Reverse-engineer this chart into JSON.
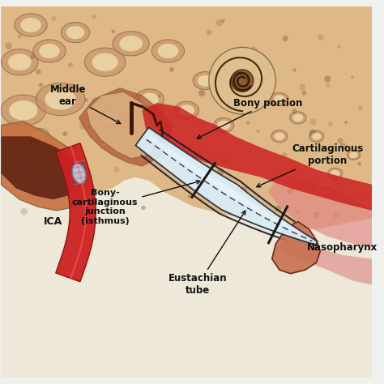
{
  "labels": {
    "middle_ear": "Middle\near",
    "ICA": "ICA",
    "bony_portion": "Bony portion",
    "cartilaginous_portion": "Cartilaginous\nportion",
    "bony_cartilaginous": "Bony-\ncartilaginous\njunction\n(isthmus)",
    "eustachian_tube": "Eustachian\ntube",
    "nasopharynx": "Nasopharynx"
  },
  "colors": {
    "bone": "#deb887",
    "bone_mid": "#c8956a",
    "bone_dark": "#8b6340",
    "soft_bg": "#f5ead0",
    "ear_canal_dark": "#7a3a1a",
    "blood_red": "#cc2222",
    "blood_red_dark": "#8b1010",
    "blood_red_light": "#e05050",
    "tube_fill": "#d8eef8",
    "tube_blue": "#b0d4e8",
    "tube_outline": "#2a2a3a",
    "background": "#f0f0ee",
    "label_text": "#111111",
    "white": "#ffffff",
    "yellow_bg": "#f5ead5"
  }
}
